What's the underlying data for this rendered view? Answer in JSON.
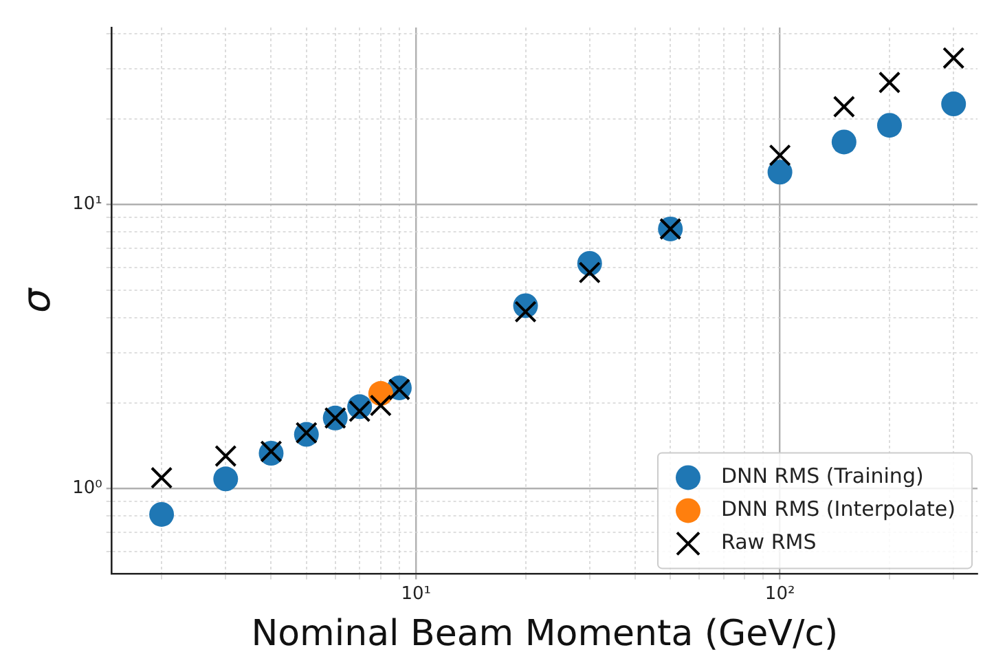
{
  "chart_data": {
    "type": "scatter",
    "xlabel": "Nominal Beam Momenta (GeV/c)",
    "ylabel": "σ",
    "log": "xy",
    "grid": true,
    "legend": "bottom right",
    "xlim": [
      1.46,
      349
    ],
    "ylim": [
      0.5,
      42
    ],
    "xticks": [
      {
        "value": 2,
        "label": null
      },
      {
        "value": 3,
        "label": null
      },
      {
        "value": 4,
        "label": null
      },
      {
        "value": 5,
        "label": null
      },
      {
        "value": 6,
        "label": null
      },
      {
        "value": 7,
        "label": null
      },
      {
        "value": 8,
        "label": null
      },
      {
        "value": 9,
        "label": null
      },
      {
        "value": 10,
        "label": "10¹"
      },
      {
        "value": 20,
        "label": null
      },
      {
        "value": 30,
        "label": null
      },
      {
        "value": 40,
        "label": null
      },
      {
        "value": 50,
        "label": null
      },
      {
        "value": 60,
        "label": null
      },
      {
        "value": 70,
        "label": null
      },
      {
        "value": 80,
        "label": null
      },
      {
        "value": 90,
        "label": null
      },
      {
        "value": 100,
        "label": "10²"
      },
      {
        "value": 200,
        "label": null
      },
      {
        "value": 300,
        "label": null
      }
    ],
    "yticks": [
      {
        "value": 0.6,
        "label": null
      },
      {
        "value": 0.7,
        "label": null
      },
      {
        "value": 0.8,
        "label": null
      },
      {
        "value": 0.9,
        "label": null
      },
      {
        "value": 1,
        "label": "10⁰"
      },
      {
        "value": 2,
        "label": null
      },
      {
        "value": 3,
        "label": null
      },
      {
        "value": 4,
        "label": null
      },
      {
        "value": 5,
        "label": null
      },
      {
        "value": 6,
        "label": null
      },
      {
        "value": 7,
        "label": null
      },
      {
        "value": 8,
        "label": null
      },
      {
        "value": 9,
        "label": null
      },
      {
        "value": 10,
        "label": "10¹"
      },
      {
        "value": 20,
        "label": null
      },
      {
        "value": 30,
        "label": null
      },
      {
        "value": 40,
        "label": null
      }
    ],
    "series": [
      {
        "name": "DNN RMS (Training)",
        "color": "#1f77b4",
        "marker": "circle",
        "x": [
          2,
          3,
          4,
          5,
          6,
          7,
          9,
          20,
          30,
          50,
          100,
          150,
          200,
          300
        ],
        "values": [
          0.81,
          1.08,
          1.33,
          1.55,
          1.77,
          1.94,
          2.26,
          4.4,
          6.2,
          8.2,
          13,
          16.6,
          19,
          22.6
        ]
      },
      {
        "name": "DNN RMS (Interpolate)",
        "color": "#ff7f0e",
        "marker": "circle",
        "x": [
          8
        ],
        "values": [
          2.16
        ]
      },
      {
        "name": "Raw RMS",
        "color": "#000000",
        "marker": "cross",
        "x": [
          2,
          3,
          4,
          5,
          6,
          7,
          8,
          9,
          20,
          30,
          50,
          100,
          150,
          200,
          300
        ],
        "values": [
          1.09,
          1.3,
          1.35,
          1.57,
          1.77,
          1.87,
          1.96,
          2.23,
          4.19,
          5.76,
          8.2,
          14.9,
          22.1,
          26.9,
          32.8
        ]
      }
    ]
  }
}
